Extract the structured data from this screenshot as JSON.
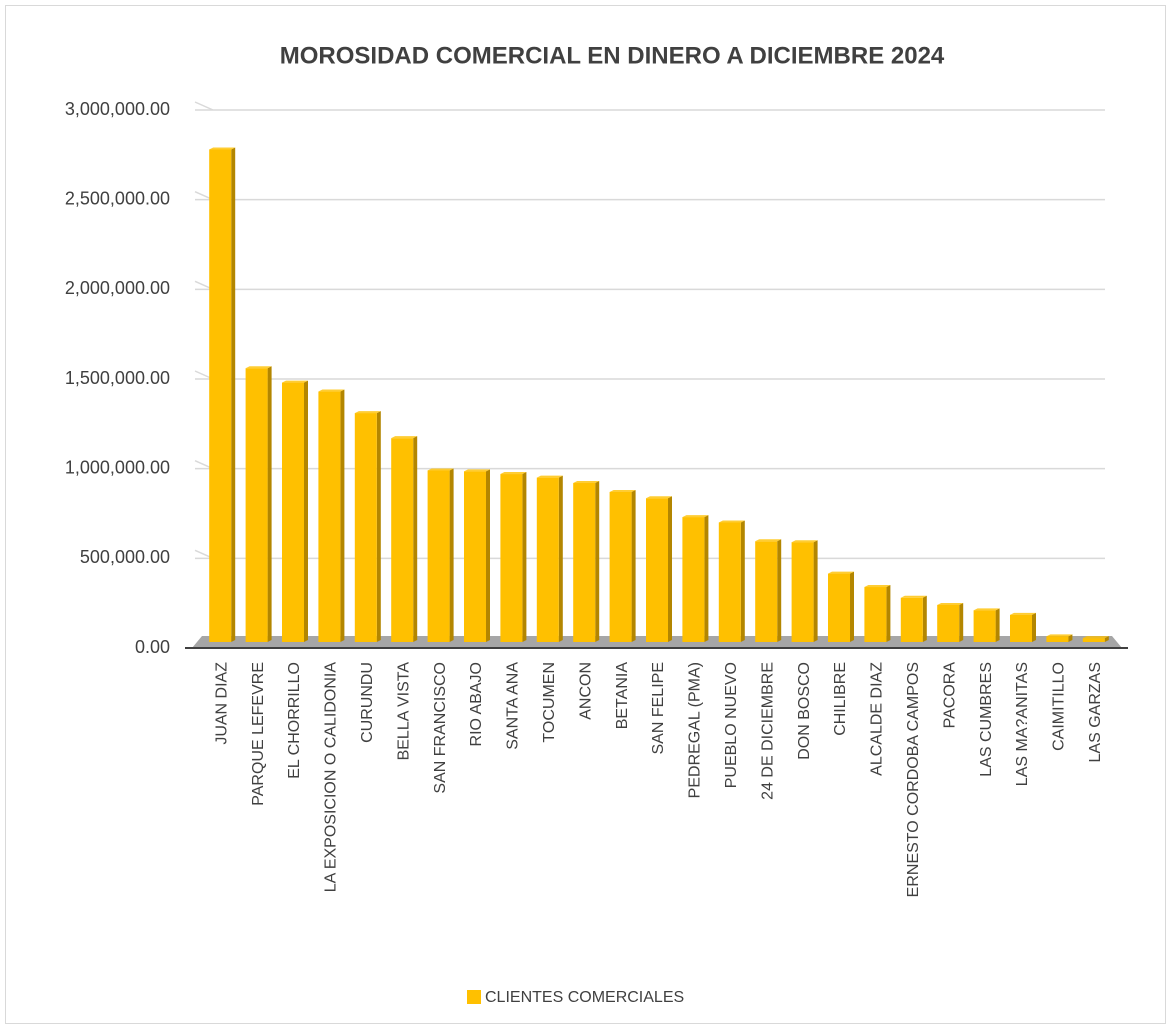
{
  "chart_data": {
    "type": "bar",
    "title": "MOROSIDAD COMERCIAL EN DINERO A DICIEMBRE 2024",
    "categories": [
      "JUAN DIAZ",
      "PARQUE LEFEVRE",
      "EL CHORRILLO",
      "LA EXPOSICION O CALIDONIA",
      "CURUNDU",
      "BELLA VISTA",
      "SAN FRANCISCO",
      "RIO ABAJO",
      "SANTA ANA",
      "TOCUMEN",
      "ANCON",
      "BETANIA",
      "SAN FELIPE",
      "PEDREGAL (PMA)",
      "PUEBLO NUEVO",
      "24 DE DICIEMBRE",
      "DON BOSCO",
      "CHILIBRE",
      "ALCALDE DIAZ",
      "ERNESTO CORDOBA CAMPOS",
      "PACORA",
      "LAS CUMBRES",
      "LAS MA?ANITAS",
      "CAIMITILLO",
      "LAS GARZAS"
    ],
    "series": [
      {
        "name": "CLIENTES COMERCIALES",
        "color": "#FFC000",
        "values": [
          2780000,
          1560000,
          1480000,
          1430000,
          1310000,
          1170000,
          990000,
          985000,
          970000,
          950000,
          920000,
          870000,
          835000,
          730000,
          700000,
          595000,
          590000,
          415000,
          340000,
          280000,
          240000,
          210000,
          185000,
          65000,
          55000
        ]
      }
    ],
    "ylim": [
      0,
      3000000
    ],
    "yticks": [
      {
        "value": 0,
        "label": "0.00"
      },
      {
        "value": 500000,
        "label": "500,000.00"
      },
      {
        "value": 1000000,
        "label": "1,000,000.00"
      },
      {
        "value": 1500000,
        "label": "1,500,000.00"
      },
      {
        "value": 2000000,
        "label": "2,000,000.00"
      },
      {
        "value": 2500000,
        "label": "2,500,000.00"
      },
      {
        "value": 3000000,
        "label": "3,000,000.00"
      }
    ],
    "grid": true,
    "legend": "bottom"
  }
}
